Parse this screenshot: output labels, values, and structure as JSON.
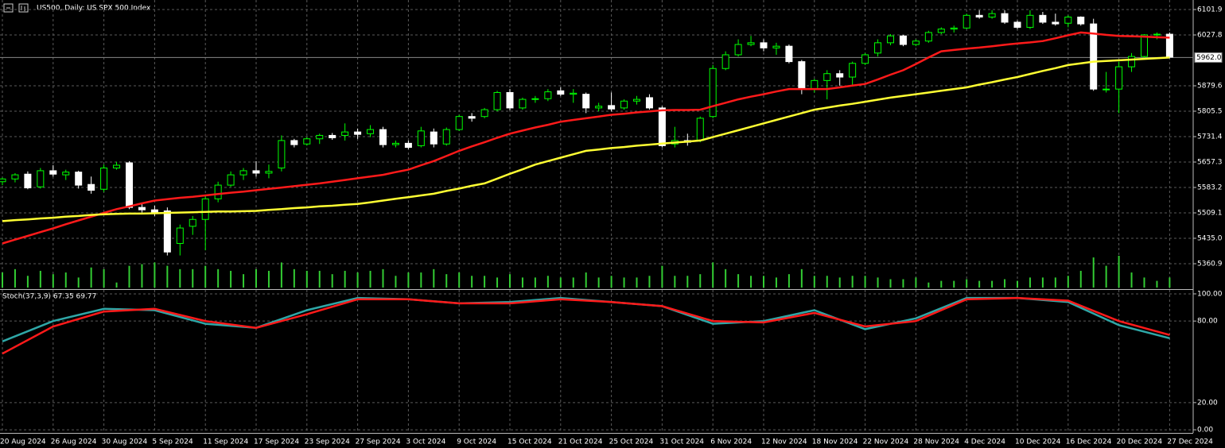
{
  "chart_data": [
    {
      "type": "candlestick",
      "title": "US500, Daily:  US SPX 500 Index",
      "categories": [
        "20 Aug 2024",
        null,
        null,
        null,
        "26 Aug 2024",
        null,
        null,
        null,
        "30 Aug 2024",
        null,
        null,
        null,
        "5 Sep 2024",
        null,
        null,
        null,
        "11 Sep 2024",
        null,
        null,
        null,
        "17 Sep 2024",
        null,
        null,
        null,
        "23 Sep 2024",
        null,
        null,
        null,
        "27 Sep 2024",
        null,
        null,
        null,
        "3 Oct 2024",
        null,
        null,
        null,
        "9 Oct 2024",
        null,
        null,
        null,
        "15 Oct 2024",
        null,
        null,
        null,
        "21 Oct 2024",
        null,
        null,
        null,
        "25 Oct 2024",
        null,
        null,
        null,
        "31 Oct 2024",
        null,
        null,
        null,
        "6 Nov 2024",
        null,
        null,
        null,
        "12 Nov 2024",
        null,
        null,
        null,
        "18 Nov 2024",
        null,
        null,
        null,
        "22 Nov 2024",
        null,
        null,
        null,
        "28 Nov 2024",
        null,
        null,
        null,
        "4 Dec 2024",
        null,
        null,
        null,
        "10 Dec 2024",
        null,
        null,
        null,
        "16 Dec 2024",
        null,
        null,
        null,
        "20 Dec 2024",
        null,
        null,
        null,
        "27 Dec 2024"
      ],
      "open": [
        5600,
        5608,
        5622,
        5585,
        5632,
        5620,
        5628,
        5592,
        5578,
        5640,
        5655,
        5525,
        5518,
        5515,
        5420,
        5470,
        5490,
        5550,
        5590,
        5620,
        5632,
        5625,
        5640,
        5720,
        5710,
        5725,
        5735,
        5735,
        5745,
        5740,
        5752,
        5708,
        5712,
        5705,
        5745,
        5710,
        5752,
        5790,
        5790,
        5810,
        5860,
        5815,
        5840,
        5842,
        5865,
        5855,
        5855,
        5815,
        5822,
        5815,
        5835,
        5845,
        5815,
        5710,
        5720,
        5720,
        5790,
        5930,
        5970,
        6000,
        6005,
        5990,
        5995,
        5950,
        5870,
        5895,
        5915,
        5905,
        5945,
        5975,
        6005,
        6025,
        6000,
        6010,
        6035,
        6045,
        6048,
        6085,
        6080,
        6090,
        6065,
        6050,
        6085,
        6065,
        6062,
        6080,
        6060,
        5870,
        5870,
        5935,
        5965,
        6028,
        6030
      ],
      "high": [
        5612,
        5625,
        5630,
        5640,
        5648,
        5635,
        5632,
        5615,
        5650,
        5658,
        5660,
        5535,
        5530,
        5525,
        5475,
        5500,
        5560,
        5600,
        5630,
        5640,
        5660,
        5650,
        5735,
        5725,
        5730,
        5740,
        5742,
        5770,
        5755,
        5765,
        5760,
        5720,
        5720,
        5760,
        5755,
        5758,
        5795,
        5800,
        5815,
        5865,
        5870,
        5845,
        5850,
        5870,
        5875,
        5870,
        5860,
        5830,
        5860,
        5840,
        5850,
        5855,
        5820,
        5760,
        5740,
        5790,
        5940,
        5980,
        6015,
        6025,
        6015,
        6005,
        6000,
        5955,
        5900,
        5925,
        5925,
        5950,
        5975,
        6015,
        6030,
        6028,
        6015,
        6040,
        6050,
        6055,
        6090,
        6100,
        6100,
        6100,
        6070,
        6100,
        6095,
        6090,
        6085,
        6082,
        6075,
        5920,
        5950,
        5975,
        6030,
        6035,
        6035
      ],
      "low": [
        5590,
        5598,
        5578,
        5580,
        5615,
        5605,
        5580,
        5565,
        5570,
        5635,
        5520,
        5510,
        5500,
        5385,
        5385,
        5445,
        5400,
        5540,
        5585,
        5605,
        5615,
        5610,
        5630,
        5700,
        5705,
        5710,
        5722,
        5720,
        5725,
        5730,
        5700,
        5700,
        5695,
        5700,
        5700,
        5705,
        5748,
        5775,
        5785,
        5805,
        5808,
        5810,
        5830,
        5835,
        5850,
        5830,
        5800,
        5805,
        5805,
        5810,
        5825,
        5810,
        5700,
        5700,
        5705,
        5715,
        5785,
        5925,
        5965,
        5995,
        5980,
        5970,
        5945,
        5855,
        5860,
        5840,
        5880,
        5880,
        5940,
        5965,
        5998,
        5995,
        5995,
        6005,
        6030,
        6035,
        6045,
        6075,
        6075,
        6060,
        6045,
        6045,
        6060,
        6055,
        6050,
        6055,
        5865,
        5860,
        5800,
        5920,
        5960,
        6015,
        5960
      ],
      "close": [
        5608,
        5620,
        5582,
        5632,
        5622,
        5628,
        5590,
        5575,
        5640,
        5648,
        5525,
        5518,
        5508,
        5395,
        5465,
        5490,
        5550,
        5590,
        5620,
        5632,
        5625,
        5630,
        5720,
        5708,
        5725,
        5735,
        5728,
        5745,
        5738,
        5752,
        5708,
        5712,
        5700,
        5748,
        5710,
        5752,
        5790,
        5785,
        5810,
        5860,
        5815,
        5840,
        5842,
        5862,
        5855,
        5858,
        5815,
        5820,
        5812,
        5835,
        5840,
        5815,
        5705,
        5720,
        5715,
        5785,
        5930,
        5970,
        6000,
        6005,
        5990,
        5995,
        5950,
        5870,
        5895,
        5915,
        5905,
        5945,
        5970,
        6005,
        6025,
        6000,
        6010,
        6035,
        6045,
        6048,
        6085,
        6080,
        6090,
        6065,
        6050,
        6085,
        6065,
        6060,
        6080,
        6060,
        5870,
        5870,
        5935,
        5965,
        6028,
        6030,
        5963
      ],
      "up_color": "#00ff00",
      "down_color": "#ffffff",
      "series": [
        {
          "color": "#ff1a1a",
          "values": [
            5420,
            5431,
            5442,
            5453,
            5464,
            5476,
            5487,
            5498,
            5509,
            5520,
            5528,
            5537,
            5545,
            5549,
            5553,
            5556,
            5560,
            5564,
            5568,
            5571,
            5575,
            5579,
            5583,
            5587,
            5591,
            5595,
            5600,
            5605,
            5610,
            5615,
            5620,
            5628,
            5635,
            5648,
            5660,
            5675,
            5690,
            5703,
            5715,
            5728,
            5740,
            5749,
            5758,
            5766,
            5775,
            5780,
            5785,
            5790,
            5795,
            5798,
            5802,
            5805,
            5808,
            5809,
            5809,
            5810,
            5820,
            5830,
            5840,
            5848,
            5855,
            5863,
            5870,
            5870,
            5870,
            5870,
            5875,
            5880,
            5885,
            5898,
            5912,
            5925,
            5943,
            5962,
            5980,
            5984,
            5988,
            5991,
            5995,
            5999,
            6003,
            6006,
            6010,
            6018,
            6027,
            6035,
            6032,
            6028,
            6025,
            6024,
            6023,
            6021,
            6020
          ]
        },
        {
          "color": "#ffff33",
          "values": [
            5485,
            5488,
            5490,
            5493,
            5495,
            5498,
            5500,
            5503,
            5505,
            5506,
            5507,
            5507,
            5508,
            5509,
            5510,
            5511,
            5512,
            5513,
            5513,
            5514,
            5515,
            5518,
            5520,
            5523,
            5525,
            5528,
            5530,
            5533,
            5535,
            5540,
            5545,
            5550,
            5555,
            5560,
            5565,
            5573,
            5580,
            5588,
            5595,
            5609,
            5623,
            5636,
            5650,
            5660,
            5670,
            5680,
            5690,
            5694,
            5698,
            5701,
            5705,
            5708,
            5711,
            5714,
            5717,
            5720,
            5730,
            5740,
            5750,
            5760,
            5770,
            5780,
            5790,
            5800,
            5810,
            5816,
            5822,
            5827,
            5833,
            5839,
            5845,
            5850,
            5855,
            5860,
            5865,
            5870,
            5875,
            5883,
            5890,
            5898,
            5905,
            5914,
            5923,
            5931,
            5940,
            5945,
            5950,
            5952,
            5954,
            5956,
            5958,
            5960,
            5962
          ]
        }
      ],
      "volume": {
        "color": "#33cc33",
        "values": [
          18,
          22,
          14,
          20,
          16,
          18,
          12,
          24,
          22,
          6,
          26,
          28,
          30,
          26,
          22,
          22,
          26,
          22,
          20,
          16,
          22,
          20,
          30,
          22,
          20,
          20,
          16,
          20,
          18,
          20,
          22,
          14,
          18,
          18,
          22,
          16,
          18,
          14,
          14,
          12,
          16,
          12,
          12,
          14,
          12,
          12,
          18,
          12,
          14,
          12,
          12,
          14,
          26,
          14,
          14,
          16,
          30,
          22,
          16,
          14,
          14,
          12,
          16,
          22,
          14,
          14,
          12,
          14,
          14,
          12,
          10,
          10,
          12,
          6,
          8,
          8,
          10,
          8,
          8,
          10,
          8,
          12,
          12,
          12,
          14,
          20,
          36,
          26,
          38,
          18,
          12,
          8,
          12
        ]
      },
      "last_price": {
        "value": 5962.0,
        "label": "5962.0"
      },
      "ylim": [
        5286.8,
        6129.7
      ],
      "yticks": [
        6101.9,
        6027.8,
        5879.6,
        5805.5,
        5731.4,
        5657.3,
        5583.2,
        5509.1,
        {
          "value": 5435.0,
          "label": "5435.0"
        },
        5360.9
      ],
      "grid": true
    },
    {
      "type": "line",
      "title": "Stoch(37,3,9) 67.35 69.77",
      "x": [
        0,
        4,
        8,
        12,
        16,
        20,
        24,
        28,
        32,
        36,
        40,
        44,
        48,
        52,
        56,
        60,
        64,
        68,
        72,
        76,
        80,
        84,
        88,
        92
      ],
      "series": [
        {
          "color": "#2fa7a7",
          "values": [
            65,
            80,
            89,
            88,
            78,
            75,
            88,
            97,
            96,
            93,
            94,
            97,
            94,
            91,
            78,
            80,
            88,
            74,
            82,
            97,
            97,
            94,
            77,
            67.35
          ]
        },
        {
          "color": "#ff1a1a",
          "values": [
            56,
            76,
            87,
            89,
            80,
            75,
            85,
            96,
            96,
            93,
            93,
            96,
            94,
            91,
            80,
            79,
            86,
            76,
            80,
            96,
            97,
            95,
            80,
            69.77
          ]
        }
      ],
      "ylim": [
        -2.3,
        102.9
      ],
      "yticks": [
        {
          "value": 100,
          "label": "100.00"
        },
        {
          "value": 80,
          "label": "80.00"
        },
        {
          "value": 20,
          "label": "20.00"
        },
        {
          "value": 0,
          "label": "0.00"
        }
      ],
      "grid": true
    }
  ]
}
